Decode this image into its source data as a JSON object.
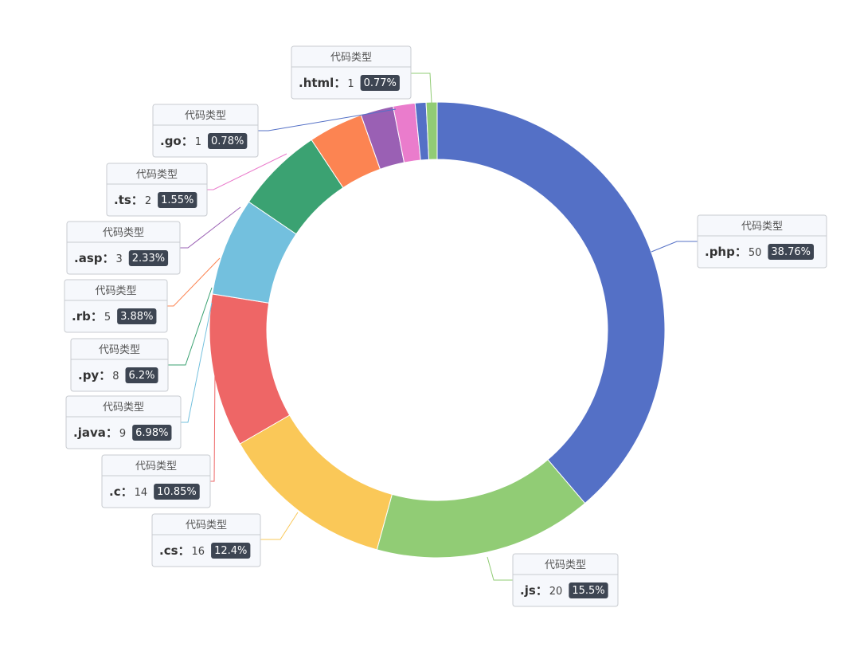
{
  "chart_data": {
    "type": "pie",
    "variant": "donut",
    "series_label": "代码类型",
    "legend": "none",
    "slices": [
      {
        "label": ".php",
        "value": 50,
        "percent": "38.76%",
        "color": "#5470c6"
      },
      {
        "label": ".js",
        "value": 20,
        "percent": "15.5%",
        "color": "#91cc75"
      },
      {
        "label": ".cs",
        "value": 16,
        "percent": "12.4%",
        "color": "#fac858"
      },
      {
        "label": ".c",
        "value": 14,
        "percent": "10.85%",
        "color": "#ee6666"
      },
      {
        "label": ".java",
        "value": 9,
        "percent": "6.98%",
        "color": "#73c0de"
      },
      {
        "label": ".py",
        "value": 8,
        "percent": "6.2%",
        "color": "#3ba272"
      },
      {
        "label": ".rb",
        "value": 5,
        "percent": "3.88%",
        "color": "#fc8452"
      },
      {
        "label": ".asp",
        "value": 3,
        "percent": "2.33%",
        "color": "#9a60b4"
      },
      {
        "label": ".ts",
        "value": 2,
        "percent": "1.55%",
        "color": "#ea7ccc"
      },
      {
        "label": ".go",
        "value": 1,
        "percent": "0.78%",
        "color": "#5470c6"
      },
      {
        "label": ".html",
        "value": 1,
        "percent": "0.77%",
        "color": "#91cc75"
      }
    ]
  }
}
